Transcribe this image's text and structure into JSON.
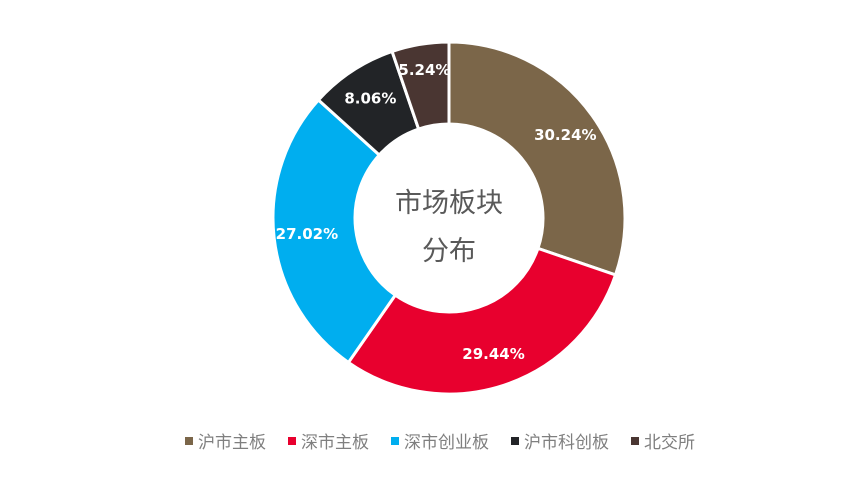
{
  "chart_data": {
    "type": "pie",
    "title": "市场板块分布",
    "title_lines": [
      "市场板块",
      "分布"
    ],
    "donut": true,
    "legend": "bottom",
    "categories": [
      "沪市主板",
      "深市主板",
      "深市创业板",
      "沪市科创板",
      "北交所"
    ],
    "values": [
      30.24,
      29.44,
      27.02,
      8.06,
      5.24
    ],
    "labels": [
      "30.24%",
      "29.44%",
      "27.02%",
      "8.06%",
      "5.24%"
    ],
    "colors": [
      "#7B6649",
      "#E8002E",
      "#00AEEF",
      "#222427",
      "#4A3632"
    ]
  }
}
